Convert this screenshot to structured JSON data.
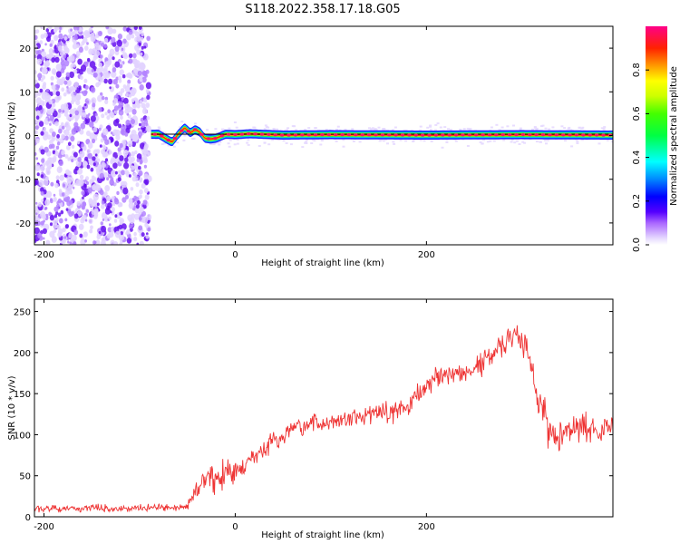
{
  "figure_title": "S118.2022.358.17.18.G05",
  "chart_data": [
    {
      "type": "heatmap",
      "title": "",
      "xlabel": "Height of straight line (km)",
      "ylabel": "Frequency (Hz)",
      "xlim": [
        -210,
        395
      ],
      "ylim": [
        -25,
        25
      ],
      "x_ticks": [
        -200,
        0,
        200
      ],
      "y_ticks": [
        20,
        10,
        0,
        -10,
        -20
      ],
      "noise_region_x": [
        -210,
        -90
      ],
      "signal_start_x": -88,
      "signal_line_frequency_hz": 0.3,
      "signal_frequency_path": {
        "x": [
          -88,
          -80,
          -72,
          -66,
          -60,
          -53,
          -47,
          -42,
          -37,
          -32,
          -26,
          -20,
          -10,
          0,
          15,
          50,
          100,
          200,
          300,
          395
        ],
        "y": [
          0.3,
          0.3,
          -0.8,
          -1.5,
          0.2,
          1.8,
          0.6,
          1.4,
          0.8,
          -0.6,
          -0.8,
          -0.6,
          0.3,
          0.2,
          0.4,
          0.1,
          0.2,
          0.1,
          0.2,
          0.1
        ]
      },
      "grid": false,
      "colorbar": {
        "label": "Normalized spectral amplitude",
        "ticks": [
          0.0,
          0.2,
          0.4,
          0.6,
          0.8
        ],
        "range": [
          0,
          1
        ],
        "colormap": "rainbow (violet to magenta)"
      }
    },
    {
      "type": "line",
      "title": "",
      "xlabel": "Height of straight line (km)",
      "ylabel": "SNR (10 * v/v)",
      "xlim": [
        -210,
        395
      ],
      "ylim": [
        0,
        265
      ],
      "x_ticks": [
        -200,
        0,
        200
      ],
      "y_ticks": [
        0,
        50,
        100,
        150,
        200,
        250
      ],
      "grid": false,
      "series": [
        {
          "color": "#ee3333",
          "x": [
            -210,
            -180,
            -150,
            -120,
            -90,
            -60,
            -50,
            -45,
            -40,
            -30,
            -20,
            -10,
            0,
            10,
            20,
            40,
            60,
            80,
            100,
            120,
            140,
            160,
            180,
            190,
            200,
            210,
            220,
            240,
            260,
            270,
            280,
            290,
            300,
            305,
            310,
            320,
            330,
            340,
            350,
            360,
            370,
            380,
            395
          ],
          "y": [
            10,
            10,
            11,
            10,
            11,
            11,
            12,
            25,
            35,
            45,
            48,
            55,
            55,
            62,
            72,
            92,
            105,
            112,
            115,
            120,
            125,
            127,
            133,
            150,
            162,
            168,
            172,
            175,
            187,
            200,
            212,
            224,
            215,
            200,
            175,
            140,
            105,
            100,
            102,
            108,
            112,
            108,
            108
          ],
          "noise_amplitude": [
            3,
            3,
            3,
            3,
            3,
            3,
            4,
            8,
            10,
            12,
            12,
            12,
            12,
            10,
            10,
            9,
            8,
            8,
            8,
            8,
            9,
            9,
            9,
            10,
            10,
            10,
            10,
            10,
            10,
            10,
            12,
            12,
            12,
            12,
            14,
            18,
            18,
            14,
            14,
            14,
            14,
            12,
            12
          ]
        }
      ]
    }
  ]
}
